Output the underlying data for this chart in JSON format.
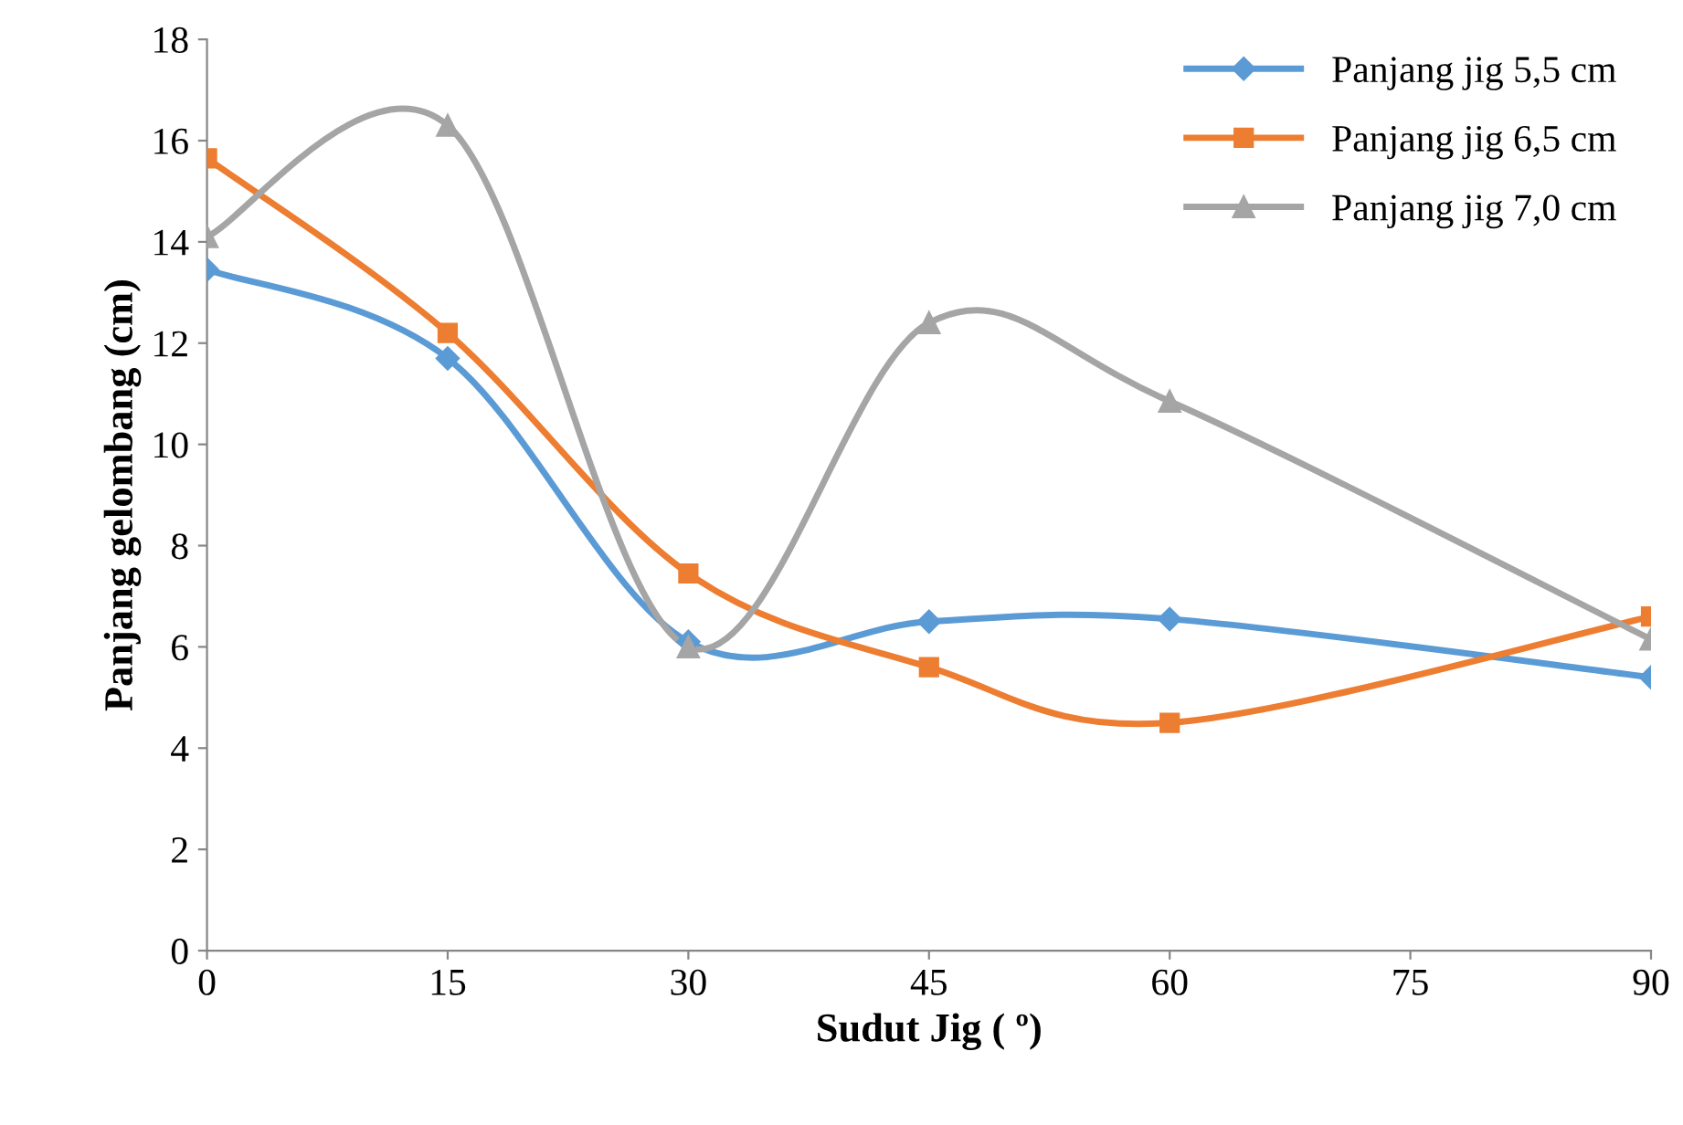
{
  "chart_data": {
    "type": "line",
    "xlabel": "Sudut Jig ( º)",
    "ylabel": "Panjang gelombang (cm)",
    "x": [
      0,
      15,
      30,
      45,
      60,
      90
    ],
    "series": [
      {
        "name": "Panjang jig 5,5 cm",
        "color": "#5b9bd5",
        "marker": "diamond",
        "values": [
          13.45,
          11.7,
          6.1,
          6.5,
          6.55,
          5.4
        ]
      },
      {
        "name": "Panjang jig 6,5 cm",
        "color": "#ed7d31",
        "marker": "square",
        "values": [
          15.65,
          12.2,
          7.45,
          5.6,
          4.5,
          6.6
        ]
      },
      {
        "name": "Panjang jig 7,0 cm",
        "color": "#a5a5a5",
        "marker": "triangle",
        "values": [
          14.1,
          16.3,
          6.0,
          12.4,
          10.85,
          6.15
        ]
      }
    ],
    "xlim": [
      0,
      90
    ],
    "xticks": [
      0,
      15,
      30,
      45,
      60,
      75,
      90
    ],
    "ylim": [
      0,
      18
    ],
    "yticks": [
      0,
      2,
      4,
      6,
      8,
      10,
      12,
      14,
      16,
      18
    ],
    "grid": false,
    "legend": "top right",
    "line_style": "solid"
  }
}
